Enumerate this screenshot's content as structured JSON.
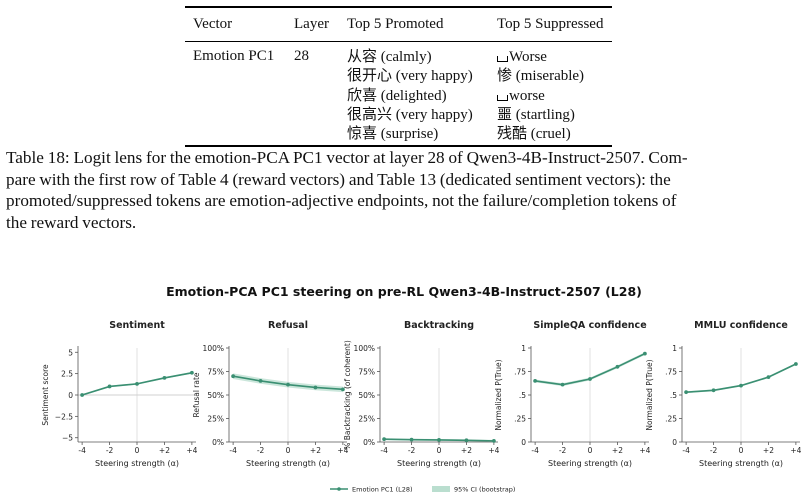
{
  "table": {
    "headers": [
      "Vector",
      "Layer",
      "Top 5 Promoted",
      "Top 5 Suppressed"
    ],
    "row": {
      "vector": "Emotion PC1",
      "layer": "28",
      "promoted": [
        "从容 (calmly)",
        "很开心 (very happy)",
        "欣喜 (delighted)",
        "很高兴 (very happy)",
        "惊喜 (surprise)"
      ],
      "suppressed": [
        {
          "space": true,
          "text": "Worse"
        },
        {
          "space": false,
          "text": "惨 (miserable)"
        },
        {
          "space": true,
          "text": "worse"
        },
        {
          "space": false,
          "text": "噩 (startling)"
        },
        {
          "space": false,
          "text": "残酷 (cruel)"
        }
      ]
    }
  },
  "caption": {
    "lines": [
      "Table 18: Logit lens for the emotion-PCA PC1 vector at layer 28 of Qwen3-4B-Instruct-2507. Com-",
      "pare with the first row of Table 4 (reward vectors) and Table 13 (dedicated sentiment vectors): the",
      "promoted/suppressed tokens are emotion-adjective endpoints, not the failure/completion tokens of",
      "the reward vectors."
    ]
  },
  "figure": {
    "title": "Emotion-PCA PC1 steering on pre-RL Qwen3-4B-Instruct-2507 (L28)",
    "legend": {
      "line": "Emotion PC1 (L28)",
      "band": "95% CI (bootstrap)"
    },
    "colors": {
      "line": "#3a8f72",
      "band": "#a9d6c3",
      "zero": "#d0d0d0"
    }
  },
  "chart_data": [
    {
      "type": "line",
      "title": "Sentiment",
      "xlabel": "Steering strength (α)",
      "ylabel": "Sentiment score",
      "x": [
        -4,
        -2,
        0,
        2,
        4
      ],
      "xticklabels": [
        "-4",
        "-2",
        "0",
        "+2",
        "+4"
      ],
      "ylim": [
        -5.5,
        5.5
      ],
      "yticks": [
        -5,
        -2.5,
        0,
        2.5,
        5
      ],
      "yticklabels": [
        "−5",
        "−2.5",
        "0",
        "2.5",
        "5"
      ],
      "values": [
        0.0,
        1.0,
        1.3,
        2.0,
        2.6
      ],
      "ci": 0.1,
      "zero_line": true
    },
    {
      "type": "line",
      "title": "Refusal",
      "xlabel": "Steering strength (α)",
      "ylabel": "Refusal rate",
      "x": [
        -4,
        -2,
        0,
        2,
        4
      ],
      "xticklabels": [
        "-4",
        "-2",
        "0",
        "+2",
        "+4"
      ],
      "ylim": [
        0,
        1
      ],
      "yticks": [
        0,
        0.25,
        0.5,
        0.75,
        1
      ],
      "yticklabels": [
        "0%",
        "25%",
        "50%",
        "75%",
        "100%"
      ],
      "values": [
        0.7,
        0.65,
        0.61,
        0.58,
        0.56
      ],
      "ci": 0.03,
      "zero_line": false
    },
    {
      "type": "line",
      "title": "Backtracking",
      "xlabel": "Steering strength (α)",
      "ylabel": "% Backtracking (of coherent)",
      "x": [
        -4,
        -2,
        0,
        2,
        4
      ],
      "xticklabels": [
        "-4",
        "-2",
        "0",
        "+2",
        "+4"
      ],
      "ylim": [
        0,
        1
      ],
      "yticks": [
        0,
        0.25,
        0.5,
        0.75,
        1
      ],
      "yticklabels": [
        "0%",
        "25%",
        "50%",
        "75%",
        "100%"
      ],
      "values": [
        0.03,
        0.025,
        0.022,
        0.018,
        0.012
      ],
      "ci": 0.01,
      "zero_line": false
    },
    {
      "type": "line",
      "title": "SimpleQA confidence",
      "xlabel": "Steering strength (α)",
      "ylabel": "Normalized P(True)",
      "x": [
        -4,
        -2,
        0,
        2,
        4
      ],
      "xticklabels": [
        "-4",
        "-2",
        "0",
        "+2",
        "+4"
      ],
      "ylim": [
        0,
        1
      ],
      "yticks": [
        0,
        0.25,
        0.5,
        0.75,
        1
      ],
      "yticklabels": [
        "0",
        ".25",
        ".5",
        ".75",
        "1"
      ],
      "values": [
        0.65,
        0.61,
        0.67,
        0.8,
        0.94
      ],
      "ci": 0.015,
      "zero_line": false
    },
    {
      "type": "line",
      "title": "MMLU confidence",
      "xlabel": "Steering strength (α)",
      "ylabel": "Normalized P(True)",
      "x": [
        -4,
        -2,
        0,
        2,
        4
      ],
      "xticklabels": [
        "-4",
        "-2",
        "0",
        "+2",
        "+4"
      ],
      "ylim": [
        0,
        1
      ],
      "yticks": [
        0,
        0.25,
        0.5,
        0.75,
        1
      ],
      "yticklabels": [
        "0",
        ".25",
        ".5",
        ".75",
        "1"
      ],
      "values": [
        0.53,
        0.55,
        0.6,
        0.69,
        0.83
      ],
      "ci": 0.01,
      "zero_line": false
    }
  ]
}
